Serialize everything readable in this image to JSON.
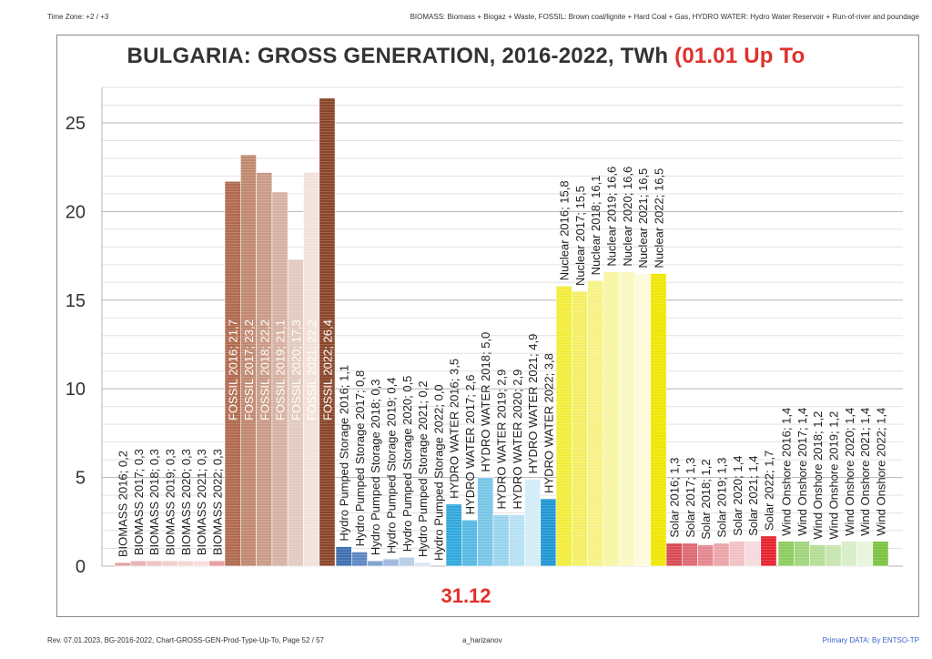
{
  "header": {
    "timezone": "Time Zone: +2 / +3",
    "legend_note": "BIOMASS: Biomass + Biogaz + Waste, FOSSIL: Brown coal/lignite + Hard Coal + Gas, HYDRO WATER:  Hydro  Water Reservoir  + Run-of-river and poundage"
  },
  "footer": {
    "revision": "Rev. 07.01.2023, BG-2016-2022, Chart-GROSS-GEN-Prod-Type-Up-To, Page 52 / 57",
    "author": "a_harizanov",
    "source": "Primary DATA: By ENTSO-TP"
  },
  "chart_data": {
    "type": "bar",
    "title_main": "BULGARIA: GROSS GENERATION, 2016-2022, TWh ",
    "title_accent": "(01.01 Up To",
    "subtitle_date": "31.12",
    "ylim": [
      0,
      27
    ],
    "y_ticks": [
      0,
      5,
      10,
      15,
      20,
      25
    ],
    "groups": [
      {
        "name": "BIOMASS",
        "colors": [
          "#e0a0a0",
          "#e8b0b0",
          "#eec0c0",
          "#f2caca",
          "#f5d4d4",
          "#f8dcdc",
          "#e59b9b"
        ],
        "bars": [
          {
            "label": "BIOMASS 2016; 0,2",
            "value": 0.2
          },
          {
            "label": "BIOMASS 2017; 0,3",
            "value": 0.3
          },
          {
            "label": "BIOMASS 2018; 0,3",
            "value": 0.3
          },
          {
            "label": "BIOMASS 2019; 0,3",
            "value": 0.3
          },
          {
            "label": "BIOMASS 2020; 0,3",
            "value": 0.3
          },
          {
            "label": "BIOMASS 2021; 0,3",
            "value": 0.3
          },
          {
            "label": "BIOMASS 2022; 0,3",
            "value": 0.3
          }
        ]
      },
      {
        "name": "FOSSIL",
        "colors": [
          "#b06a4e",
          "#c08870",
          "#c99a86",
          "#d6b1a2",
          "#e3c9be",
          "#f1e1da",
          "#8a4528"
        ],
        "bars": [
          {
            "label": "FOSSIL 2016; 21,7",
            "value": 21.7
          },
          {
            "label": "FOSSIL 2017; 23,2",
            "value": 23.2
          },
          {
            "label": "FOSSIL 2018; 22,2",
            "value": 22.2
          },
          {
            "label": "FOSSIL 2019; 21,1",
            "value": 21.1
          },
          {
            "label": "FOSSIL 2020; 17,3",
            "value": 17.3
          },
          {
            "label": "FOSSIL 2021; 22,2",
            "value": 22.2
          },
          {
            "label": "FOSSIL 2022; 26,4",
            "value": 26.4
          }
        ]
      },
      {
        "name": "Hydro Pumped Storage",
        "colors": [
          "#3e6fb0",
          "#5c86c0",
          "#7b9fcf",
          "#9ab6dc",
          "#b8cde8",
          "#d4e2f2",
          "#2f5ea3"
        ],
        "bars": [
          {
            "label": "Hydro Pumped Storage 2016; 1,1",
            "value": 1.1
          },
          {
            "label": "Hydro Pumped Storage 2017; 0,8",
            "value": 0.8
          },
          {
            "label": "Hydro Pumped Storage 2018; 0,3",
            "value": 0.3
          },
          {
            "label": "Hydro Pumped Storage 2019; 0,4",
            "value": 0.4
          },
          {
            "label": "Hydro Pumped Storage 2020; 0,5",
            "value": 0.5
          },
          {
            "label": "Hydro Pumped Storage 2021; 0,2",
            "value": 0.2
          },
          {
            "label": "Hydro Pumped Storage 2022; 0,0",
            "value": 0.0
          }
        ]
      },
      {
        "name": "HYDRO WATER",
        "colors": [
          "#30a8dc",
          "#56b8e2",
          "#78c6e8",
          "#98d3ee",
          "#b6e0f3",
          "#d3edf8",
          "#1f96d3"
        ],
        "bars": [
          {
            "label": "HYDRO WATER 2016; 3,5",
            "value": 3.5
          },
          {
            "label": "HYDRO WATER 2017; 2,6",
            "value": 2.6
          },
          {
            "label": "HYDRO WATER 2018; 5,0",
            "value": 5.0
          },
          {
            "label": "HYDRO WATER 2019; 2,9",
            "value": 2.9
          },
          {
            "label": "HYDRO WATER 2020; 2,9",
            "value": 2.9
          },
          {
            "label": "HYDRO WATER 2021; 4,9",
            "value": 4.9
          },
          {
            "label": "HYDRO WATER 2022; 3,8",
            "value": 3.8
          }
        ]
      },
      {
        "name": "Nuclear",
        "colors": [
          "#f2ec3c",
          "#f4ef62",
          "#f6f284",
          "#f8f5a3",
          "#faf8bf",
          "#fcfad9",
          "#f0e600"
        ],
        "bars": [
          {
            "label": "Nuclear 2016; 15,8",
            "value": 15.8
          },
          {
            "label": "Nuclear 2017; 15,5",
            "value": 15.5
          },
          {
            "label": "Nuclear 2018; 16,1",
            "value": 16.1
          },
          {
            "label": "Nuclear 2019; 16,6",
            "value": 16.6
          },
          {
            "label": "Nuclear 2020; 16,6",
            "value": 16.6
          },
          {
            "label": "Nuclear 2021; 16,5",
            "value": 16.5
          },
          {
            "label": "Nuclear 2022; 16,5",
            "value": 16.5
          }
        ]
      },
      {
        "name": "Solar",
        "colors": [
          "#d74a55",
          "#de6872",
          "#e5868e",
          "#eba3a9",
          "#f1c0c4",
          "#f6dadd",
          "#e5222d"
        ],
        "bars": [
          {
            "label": "Solar 2016; 1,3",
            "value": 1.3
          },
          {
            "label": "Solar 2017; 1,3",
            "value": 1.3
          },
          {
            "label": "Solar 2018; 1,2",
            "value": 1.2
          },
          {
            "label": "Solar 2019; 1,3",
            "value": 1.3
          },
          {
            "label": "Solar 2020; 1,4",
            "value": 1.4
          },
          {
            "label": "Solar 2021; 1,4",
            "value": 1.4
          },
          {
            "label": "Solar 2022; 1,7",
            "value": 1.7
          }
        ]
      },
      {
        "name": "Wind Onshore",
        "colors": [
          "#8ccb5e",
          "#a0d47a",
          "#b3dd94",
          "#c5e5ad",
          "#d7eec6",
          "#e7f5dc",
          "#7cc241"
        ],
        "bars": [
          {
            "label": "Wind Onshore 2016; 1,4",
            "value": 1.4
          },
          {
            "label": "Wind Onshore 2017; 1,4",
            "value": 1.4
          },
          {
            "label": "Wind Onshore 2018; 1,2",
            "value": 1.2
          },
          {
            "label": "Wind Onshore 2019; 1,2",
            "value": 1.2
          },
          {
            "label": "Wind Onshore 2020; 1,4",
            "value": 1.4
          },
          {
            "label": "Wind Onshore 2021; 1,4",
            "value": 1.4
          },
          {
            "label": "Wind Onshore 2022; 1,4",
            "value": 1.4
          }
        ]
      }
    ]
  }
}
